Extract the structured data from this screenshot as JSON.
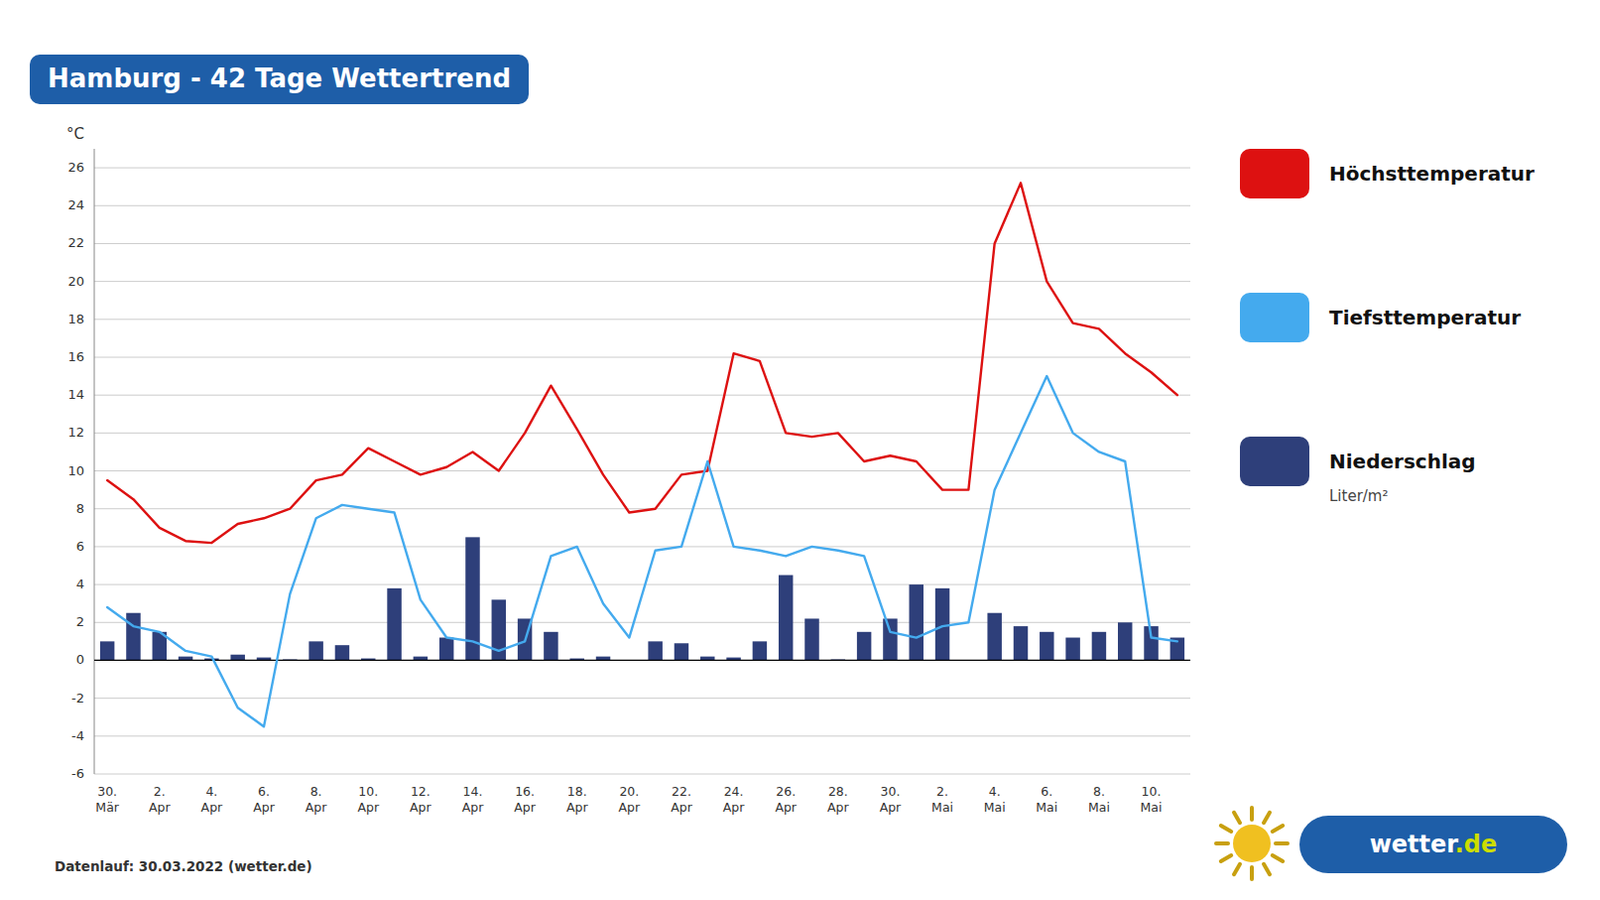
{
  "chart_data": {
    "type": "bar",
    "title": "Hamburg - 42 Tage Wettertrend",
    "y_label": "°C",
    "categories": [
      "30.\nMär",
      null,
      "2.\nApr",
      null,
      "4.\nApr",
      null,
      "6.\nApr",
      null,
      "8.\nApr",
      null,
      "10.\nApr",
      null,
      "12.\nApr",
      null,
      "14.\nApr",
      null,
      "16.\nApr",
      null,
      "18.\nApr",
      null,
      "20.\nApr",
      null,
      "22.\nApr",
      null,
      "24.\nApr",
      null,
      "26.\nApr",
      null,
      "28.\nApr",
      null,
      "30.\nApr",
      null,
      "2.\nMai",
      null,
      "4.\nMai",
      null,
      "6.\nMai",
      null,
      "8.\nMai",
      null,
      "10.\nMai",
      null
    ],
    "series": [
      {
        "name": "Höchsttemperatur",
        "type": "line",
        "color": "#dd1111",
        "values": [
          9.5,
          8.5,
          7.0,
          6.3,
          6.2,
          7.2,
          7.5,
          8.0,
          9.5,
          9.8,
          11.2,
          10.5,
          9.8,
          10.2,
          11.0,
          10.0,
          12.0,
          14.5,
          12.2,
          9.8,
          7.8,
          8.0,
          9.8,
          10.0,
          16.2,
          15.8,
          12.0,
          11.8,
          12.0,
          10.5,
          10.8,
          10.5,
          9.0,
          9.0,
          22.0,
          25.2,
          20.0,
          17.8,
          17.5,
          16.2,
          15.2,
          14.0
        ]
      },
      {
        "name": "Tiefsttemperatur",
        "type": "line",
        "color": "#44aaee",
        "values": [
          2.8,
          1.8,
          1.5,
          0.5,
          0.2,
          -2.5,
          -3.5,
          3.5,
          7.5,
          8.2,
          8.0,
          7.8,
          3.2,
          1.2,
          1.0,
          0.5,
          1.0,
          5.5,
          6.0,
          3.0,
          1.2,
          5.8,
          6.0,
          10.5,
          6.0,
          5.8,
          5.5,
          6.0,
          5.8,
          5.5,
          1.5,
          1.2,
          1.8,
          2.0,
          9.0,
          12.0,
          15.0,
          12.0,
          11.0,
          10.5,
          1.2,
          1.0
        ]
      },
      {
        "name": "Niederschlag",
        "type": "bar",
        "color": "#2e3f7a",
        "values": [
          1.0,
          2.5,
          1.5,
          0.2,
          0.1,
          0.3,
          0.15,
          0.05,
          1.0,
          0.8,
          0.1,
          3.8,
          0.2,
          1.2,
          6.5,
          3.2,
          2.2,
          1.5,
          0.1,
          0.2,
          0.0,
          1.0,
          0.9,
          0.2,
          0.15,
          1.0,
          4.5,
          2.2,
          0.05,
          1.5,
          2.2,
          4.0,
          3.8,
          0.0,
          2.5,
          1.8,
          1.5,
          1.2,
          1.5,
          2.0,
          1.8,
          1.2
        ]
      }
    ],
    "ylim": [
      -6,
      27
    ],
    "yticks": [
      -6,
      -4,
      -2,
      0,
      2,
      4,
      6,
      8,
      10,
      12,
      14,
      16,
      18,
      20,
      22,
      24,
      26
    ],
    "grid": true,
    "legend": "right",
    "annotations": [
      "Liter/m²",
      "Datenlauf: 30.03.2022 (wetter.de)",
      "wetter",
      ".de"
    ]
  }
}
